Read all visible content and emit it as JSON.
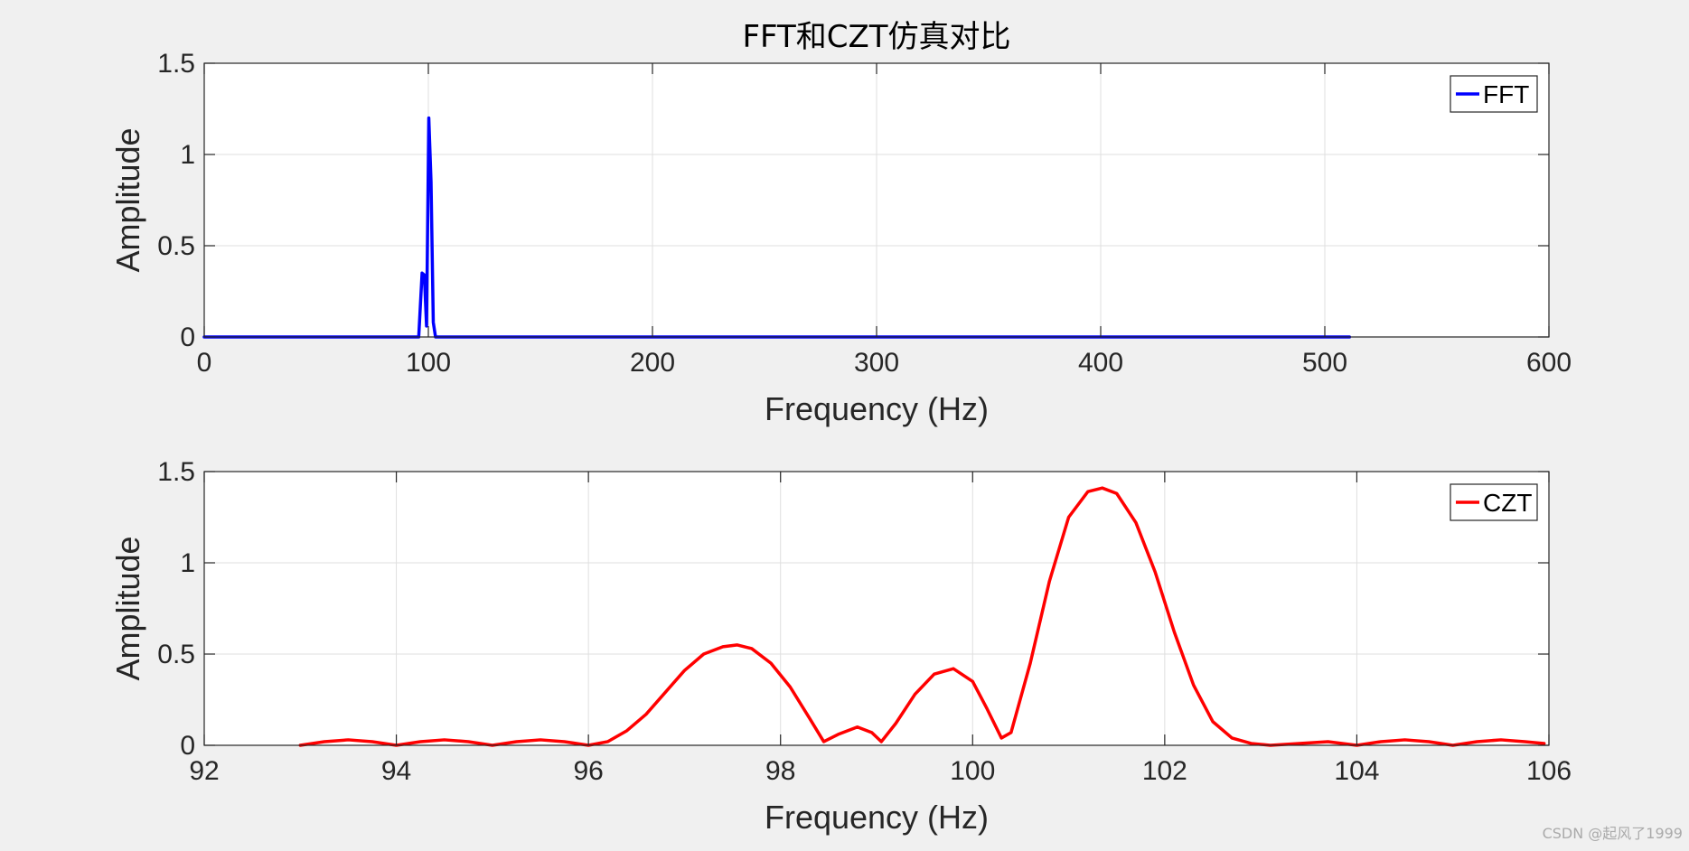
{
  "watermark": "CSDN @起风了1999",
  "chart_data": [
    {
      "type": "line",
      "title": "FFT和CZT仿真对比",
      "xlabel": "Frequency (Hz)",
      "ylabel": "Amplitude",
      "xlim": [
        0,
        600
      ],
      "ylim": [
        0,
        1.5
      ],
      "xticks": [
        0,
        100,
        200,
        300,
        400,
        500,
        600
      ],
      "yticks": [
        0,
        0.5,
        1,
        1.5
      ],
      "xtick_labels": [
        "0",
        "100",
        "200",
        "300",
        "400",
        "500",
        "600"
      ],
      "ytick_labels": [
        "0",
        "0.5",
        "1",
        "1.5"
      ],
      "grid": true,
      "legend_position": "top-right",
      "series": [
        {
          "name": "FFT",
          "color": "#0000ff",
          "x": [
            0,
            95.7,
            97.2,
            98.2,
            99.2,
            100.2,
            101.2,
            102.2,
            103.2,
            104.2,
            511
          ],
          "y": [
            0,
            0,
            0.35,
            0.34,
            0.06,
            1.2,
            0.85,
            0.08,
            0,
            0,
            0
          ]
        }
      ]
    },
    {
      "type": "line",
      "title": "",
      "xlabel": "Frequency (Hz)",
      "ylabel": "Amplitude",
      "xlim": [
        92,
        106
      ],
      "ylim": [
        0,
        1.5
      ],
      "xticks": [
        92,
        94,
        96,
        98,
        100,
        102,
        104,
        106
      ],
      "yticks": [
        0,
        0.5,
        1,
        1.5
      ],
      "xtick_labels": [
        "92",
        "94",
        "96",
        "98",
        "100",
        "102",
        "104",
        "106"
      ],
      "ytick_labels": [
        "0",
        "0.5",
        "1",
        "1.5"
      ],
      "grid": true,
      "legend_position": "top-right",
      "series": [
        {
          "name": "CZT",
          "color": "#ff0000",
          "x": [
            93.0,
            93.25,
            93.5,
            93.75,
            94.0,
            94.25,
            94.5,
            94.75,
            95.0,
            95.25,
            95.5,
            95.75,
            96.0,
            96.2,
            96.4,
            96.6,
            96.8,
            97.0,
            97.2,
            97.4,
            97.55,
            97.7,
            97.9,
            98.1,
            98.3,
            98.45,
            98.6,
            98.8,
            98.95,
            99.05,
            99.2,
            99.4,
            99.6,
            99.8,
            100.0,
            100.15,
            100.3,
            100.4,
            100.6,
            100.8,
            101.0,
            101.2,
            101.35,
            101.5,
            101.7,
            101.9,
            102.1,
            102.3,
            102.5,
            102.7,
            102.9,
            103.1,
            103.4,
            103.7,
            104.0,
            104.25,
            104.5,
            104.75,
            105.0,
            105.25,
            105.5,
            105.75,
            105.95
          ],
          "y": [
            0.0,
            0.02,
            0.03,
            0.02,
            0.0,
            0.02,
            0.03,
            0.02,
            0.0,
            0.02,
            0.03,
            0.02,
            0.0,
            0.02,
            0.08,
            0.17,
            0.29,
            0.41,
            0.5,
            0.54,
            0.55,
            0.53,
            0.45,
            0.32,
            0.15,
            0.02,
            0.06,
            0.1,
            0.07,
            0.02,
            0.12,
            0.28,
            0.39,
            0.42,
            0.35,
            0.2,
            0.04,
            0.07,
            0.45,
            0.9,
            1.25,
            1.39,
            1.41,
            1.38,
            1.22,
            0.95,
            0.62,
            0.33,
            0.13,
            0.04,
            0.01,
            0.0,
            0.01,
            0.02,
            0.0,
            0.02,
            0.03,
            0.02,
            0.0,
            0.02,
            0.03,
            0.02,
            0.01
          ]
        }
      ]
    }
  ]
}
